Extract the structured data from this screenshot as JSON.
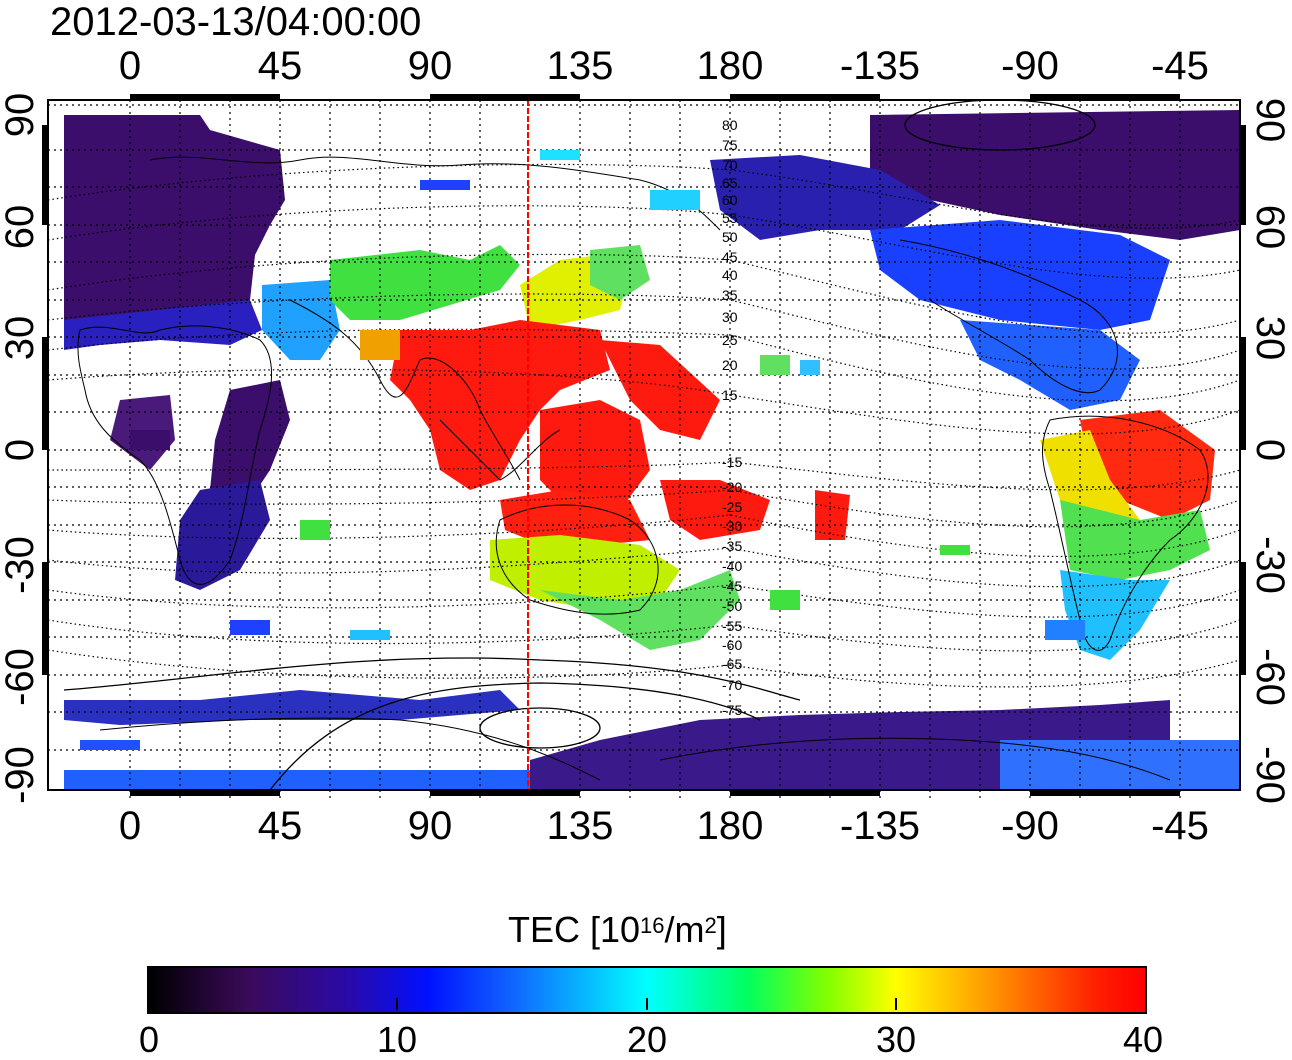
{
  "title": "2012-03-13/04:00:00",
  "x_axis_labels_top": [
    "0",
    "45",
    "90",
    "135",
    "180",
    "-135",
    "-90",
    "-45"
  ],
  "x_axis_labels_bottom": [
    "0",
    "45",
    "90",
    "135",
    "180",
    "-135",
    "-90",
    "-45"
  ],
  "y_axis_labels_left": [
    "90",
    "60",
    "30",
    "0",
    "-30",
    "-60",
    "-90"
  ],
  "y_axis_labels_right": [
    "90",
    "60",
    "30",
    "0",
    "-30",
    "-60",
    "-90"
  ],
  "contour_labels": [
    "80",
    "75",
    "70",
    "65",
    "60",
    "55",
    "50",
    "45",
    "40",
    "35",
    "30",
    "25",
    "20",
    "15",
    "-15",
    "-20",
    "-25",
    "-30",
    "-35",
    "-40",
    "-45",
    "-50",
    "-55",
    "-60",
    "-65",
    "-70",
    "-75"
  ],
  "colorbar": {
    "label_prefix": "TEC  [10",
    "label_sup1": "16",
    "label_mid": "/m",
    "label_sup2": "2",
    "label_suffix": "]",
    "ticks": [
      "0",
      "10",
      "20",
      "30",
      "40"
    ],
    "min": 0,
    "max": 40
  },
  "marker_longitude": 120,
  "colors": {
    "low": "#3a0a5a",
    "blue": "#1030ff",
    "cyan": "#00e0ff",
    "green": "#30e030",
    "yellow": "#f0f000",
    "red": "#ff1010",
    "marker_line": "#ff0000"
  }
}
